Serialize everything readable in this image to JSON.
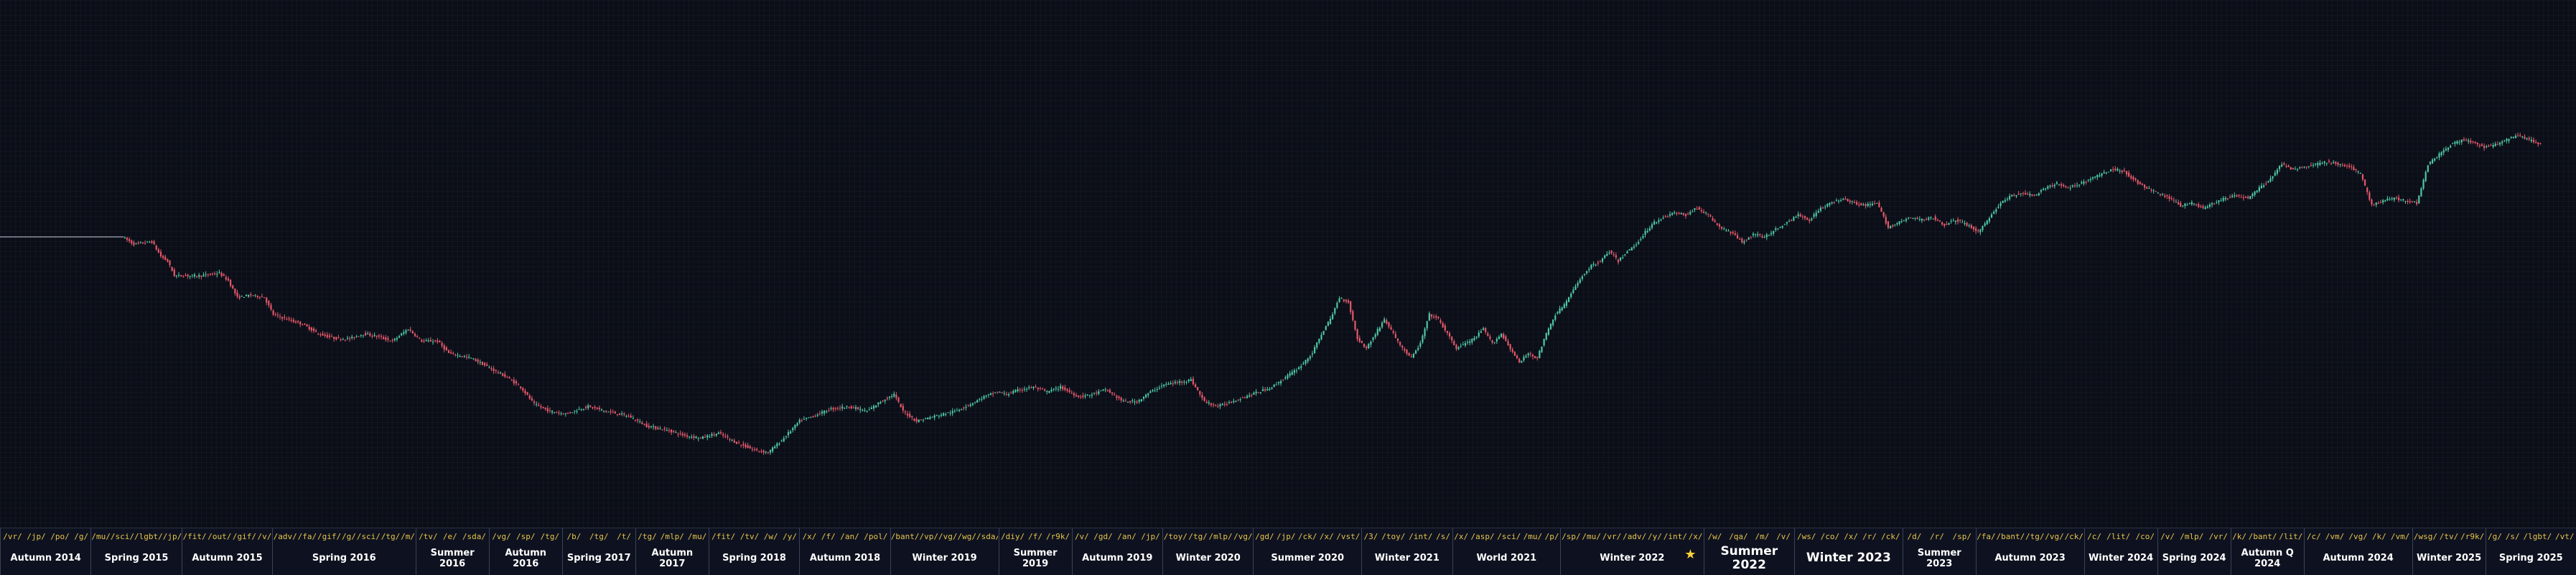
{
  "colors": {
    "background": "#0b0e17",
    "grid": "#161c2a",
    "up": "#4fc7a5",
    "down": "#e5586a",
    "flat_line": "#8a8f9c",
    "label_text": "#ffffff",
    "board_text": "#e6c44a",
    "star": "#ffd23a"
  },
  "chart_data": {
    "type": "candlestick",
    "title": "",
    "xlabel": "",
    "ylabel": "",
    "grid": true,
    "legend": "none",
    "ylim": [
      0,
      100
    ],
    "path": [
      [
        0,
        60
      ],
      [
        55,
        60
      ],
      [
        60,
        58.5
      ],
      [
        68,
        59
      ],
      [
        72,
        56
      ],
      [
        75,
        55
      ],
      [
        78,
        52
      ],
      [
        90,
        52
      ],
      [
        98,
        52.5
      ],
      [
        102,
        51
      ],
      [
        106,
        47.5
      ],
      [
        112,
        48
      ],
      [
        118,
        47.5
      ],
      [
        122,
        44
      ],
      [
        128,
        43
      ],
      [
        135,
        42
      ],
      [
        142,
        40
      ],
      [
        150,
        39
      ],
      [
        156,
        39
      ],
      [
        162,
        40
      ],
      [
        168,
        39.5
      ],
      [
        175,
        38.5
      ],
      [
        182,
        41
      ],
      [
        188,
        38.5
      ],
      [
        195,
        38.5
      ],
      [
        200,
        36
      ],
      [
        210,
        35
      ],
      [
        218,
        33
      ],
      [
        226,
        31
      ],
      [
        232,
        29
      ],
      [
        238,
        25.5
      ],
      [
        245,
        24
      ],
      [
        252,
        23.5
      ],
      [
        262,
        25
      ],
      [
        270,
        24
      ],
      [
        280,
        23
      ],
      [
        288,
        21
      ],
      [
        298,
        20
      ],
      [
        305,
        19
      ],
      [
        312,
        18.5
      ],
      [
        320,
        19.5
      ],
      [
        328,
        17.5
      ],
      [
        336,
        16
      ],
      [
        342,
        15.5
      ],
      [
        348,
        18
      ],
      [
        356,
        22
      ],
      [
        362,
        23
      ],
      [
        370,
        24.5
      ],
      [
        378,
        25
      ],
      [
        386,
        24
      ],
      [
        392,
        26
      ],
      [
        398,
        27.5
      ],
      [
        402,
        24
      ],
      [
        408,
        22
      ],
      [
        416,
        23
      ],
      [
        425,
        24
      ],
      [
        432,
        25.5
      ],
      [
        438,
        27
      ],
      [
        444,
        28
      ],
      [
        448,
        27.5
      ],
      [
        454,
        28.5
      ],
      [
        460,
        29
      ],
      [
        466,
        28
      ],
      [
        472,
        29
      ],
      [
        480,
        27
      ],
      [
        486,
        27.5
      ],
      [
        492,
        28.5
      ],
      [
        500,
        26
      ],
      [
        506,
        26
      ],
      [
        512,
        28
      ],
      [
        518,
        29.5
      ],
      [
        524,
        30
      ],
      [
        530,
        30.5
      ],
      [
        536,
        26
      ],
      [
        542,
        25
      ],
      [
        548,
        26
      ],
      [
        554,
        27
      ],
      [
        560,
        28
      ],
      [
        566,
        29
      ],
      [
        572,
        31
      ],
      [
        578,
        33
      ],
      [
        584,
        36
      ],
      [
        588,
        40
      ],
      [
        592,
        43
      ],
      [
        596,
        47.5
      ],
      [
        600,
        46.5
      ],
      [
        604,
        39
      ],
      [
        608,
        37
      ],
      [
        612,
        40
      ],
      [
        616,
        43
      ],
      [
        620,
        40
      ],
      [
        624,
        37
      ],
      [
        628,
        35
      ],
      [
        632,
        38
      ],
      [
        636,
        44
      ],
      [
        640,
        43
      ],
      [
        644,
        40
      ],
      [
        648,
        37
      ],
      [
        652,
        38
      ],
      [
        656,
        39
      ],
      [
        660,
        41
      ],
      [
        664,
        38
      ],
      [
        668,
        40
      ],
      [
        672,
        37
      ],
      [
        676,
        34
      ],
      [
        680,
        36
      ],
      [
        684,
        35
      ],
      [
        688,
        40
      ],
      [
        692,
        44
      ],
      [
        696,
        46
      ],
      [
        700,
        49
      ],
      [
        704,
        52
      ],
      [
        708,
        54
      ],
      [
        712,
        55
      ],
      [
        716,
        57
      ],
      [
        720,
        55
      ],
      [
        724,
        57
      ],
      [
        728,
        58.5
      ],
      [
        732,
        61
      ],
      [
        736,
        63
      ],
      [
        740,
        64
      ],
      [
        745,
        65
      ],
      [
        750,
        64.5
      ],
      [
        755,
        66
      ],
      [
        760,
        64.5
      ],
      [
        765,
        62
      ],
      [
        770,
        61
      ],
      [
        775,
        59
      ],
      [
        780,
        60.5
      ],
      [
        785,
        60
      ],
      [
        790,
        61.5
      ],
      [
        795,
        63
      ],
      [
        800,
        64.5
      ],
      [
        805,
        63.5
      ],
      [
        810,
        66
      ],
      [
        815,
        67
      ],
      [
        820,
        68
      ],
      [
        825,
        67
      ],
      [
        830,
        66.5
      ],
      [
        835,
        67
      ],
      [
        840,
        62
      ],
      [
        845,
        63
      ],
      [
        850,
        64
      ],
      [
        855,
        63.5
      ],
      [
        860,
        64
      ],
      [
        865,
        62.5
      ],
      [
        870,
        63.5
      ],
      [
        875,
        62.5
      ],
      [
        880,
        61
      ],
      [
        885,
        64
      ],
      [
        890,
        67
      ],
      [
        895,
        68.5
      ],
      [
        900,
        69
      ],
      [
        905,
        68.5
      ],
      [
        910,
        70
      ],
      [
        915,
        71
      ],
      [
        920,
        70
      ],
      [
        925,
        71
      ],
      [
        930,
        72
      ],
      [
        935,
        73
      ],
      [
        940,
        74
      ],
      [
        945,
        73.5
      ],
      [
        950,
        71.5
      ],
      [
        955,
        70
      ],
      [
        960,
        69
      ],
      [
        965,
        68
      ],
      [
        970,
        66.5
      ],
      [
        975,
        67
      ],
      [
        980,
        66
      ],
      [
        985,
        67
      ],
      [
        990,
        68
      ],
      [
        995,
        68.5
      ],
      [
        1000,
        68
      ],
      [
        1005,
        70
      ],
      [
        1010,
        72
      ],
      [
        1015,
        75
      ],
      [
        1020,
        74
      ],
      [
        1025,
        74.5
      ],
      [
        1030,
        75
      ],
      [
        1035,
        75.5
      ],
      [
        1040,
        75
      ],
      [
        1045,
        74.5
      ],
      [
        1050,
        73
      ],
      [
        1055,
        66.5
      ],
      [
        1060,
        67.5
      ],
      [
        1065,
        68
      ],
      [
        1070,
        67.5
      ],
      [
        1075,
        67
      ],
      [
        1080,
        75
      ],
      [
        1085,
        77
      ],
      [
        1090,
        79
      ],
      [
        1095,
        80
      ],
      [
        1100,
        79.5
      ],
      [
        1105,
        78.5
      ],
      [
        1110,
        79
      ],
      [
        1115,
        80
      ],
      [
        1120,
        81
      ],
      [
        1125,
        80
      ],
      [
        1130,
        79
      ]
    ]
  },
  "timeline": [
    {
      "label": "Autumn 2014",
      "boards": [
        "/vr/",
        "/jp/",
        "/po/",
        "/g/"
      ]
    },
    {
      "label": "Spring 2015",
      "boards": [
        "/mu/",
        "/sci/",
        "/lgbt/",
        "/jp/"
      ]
    },
    {
      "label": "Autumn 2015",
      "boards": [
        "/fit/",
        "/out/",
        "/gif/",
        "/v/"
      ]
    },
    {
      "label": "Spring 2016",
      "boards": [
        "/adv/",
        "/fa/",
        "/gif/",
        "/g/",
        "/sci/",
        "/tg/",
        "/m/"
      ]
    },
    {
      "label": "Summer 2016",
      "boards": [
        "/tv/",
        "/e/",
        "/sda/"
      ]
    },
    {
      "label": "Autumn 2016",
      "boards": [
        "/vg/",
        "/sp/",
        "/tg/"
      ]
    },
    {
      "label": "Spring 2017",
      "boards": [
        "/b/",
        "/tg/",
        "/t/"
      ]
    },
    {
      "label": "Autumn 2017",
      "boards": [
        "/tg/",
        "/mlp/",
        "/mu/"
      ]
    },
    {
      "label": "Spring 2018",
      "boards": [
        "/fit/",
        "/tv/",
        "/w/",
        "/y/"
      ]
    },
    {
      "label": "Autumn 2018",
      "boards": [
        "/x/",
        "/f/",
        "/an/",
        "/pol/"
      ]
    },
    {
      "label": "Winter 2019",
      "boards": [
        "/bant/",
        "/vp/",
        "/vg/",
        "/wg/",
        "/sda/"
      ]
    },
    {
      "label": "Summer 2019",
      "boards": [
        "/diy/",
        "/f/",
        "/r9k/"
      ]
    },
    {
      "label": "Autumn 2019",
      "boards": [
        "/v/",
        "/gd/",
        "/an/",
        "/jp/"
      ]
    },
    {
      "label": "Winter 2020",
      "boards": [
        "/toy/",
        "/tg/",
        "/mlp/",
        "/vg/"
      ]
    },
    {
      "label": "Summer 2020",
      "boards": [
        "/gd/",
        "/jp/",
        "/ck/",
        "/x/",
        "/vst/"
      ]
    },
    {
      "label": "Winter 2021",
      "boards": [
        "/3/",
        "/toy/",
        "/int/",
        "/s/"
      ]
    },
    {
      "label": "World 2021",
      "boards": [
        "/x/",
        "/asp/",
        "/sci/",
        "/mu/",
        "/p/"
      ]
    },
    {
      "label": "Winter 2022",
      "boards": [
        "/sp/",
        "/mu/",
        "/vr/",
        "/adv/",
        "/y/",
        "/int/",
        "/x/"
      ],
      "star": "★"
    },
    {
      "label": "Summer 2022",
      "boards": [
        "/w/",
        "/qa/",
        "/m/",
        "/v/"
      ]
    },
    {
      "label": "Winter 2023",
      "boards": [
        "/ws/",
        "/co/",
        "/x/",
        "/r/",
        "/ck/"
      ]
    },
    {
      "label": "Summer 2023",
      "boards": [
        "/d/",
        "/r/",
        "/sp/"
      ]
    },
    {
      "label": "Autumn 2023",
      "boards": [
        "/fa/",
        "/bant/",
        "/tg/",
        "/vg/",
        "/ck/"
      ]
    },
    {
      "label": "Winter 2024",
      "boards": [
        "/c/",
        "/lit/",
        "/co/"
      ]
    },
    {
      "label": "Spring 2024",
      "boards": [
        "/v/",
        "/mlp/",
        "/vr/"
      ]
    },
    {
      "label": "Autumn Q 2024",
      "boards": [
        "/k/",
        "/bant/",
        "/lit/"
      ]
    },
    {
      "label": "Autumn 2024",
      "boards": [
        "/c/",
        "/vm/",
        "/vg/",
        "/k/",
        "/vm/"
      ]
    },
    {
      "label": "Winter 2025",
      "boards": [
        "/wsg/",
        "/tv/",
        "/r9k/"
      ]
    },
    {
      "label": "Spring 2025",
      "boards": [
        "/g/",
        "/s/",
        "/lgbt/",
        "/vt/"
      ]
    }
  ]
}
